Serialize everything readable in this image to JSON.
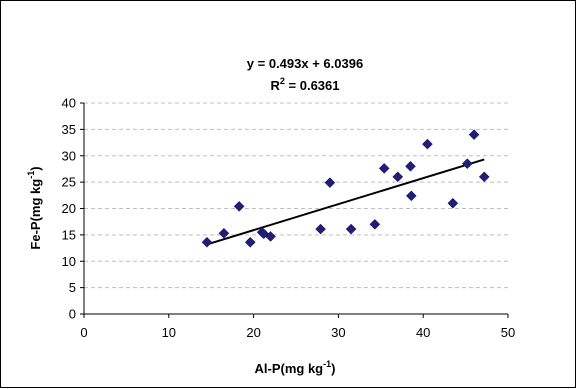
{
  "chart_data": {
    "type": "scatter",
    "title": "",
    "xlabel": {
      "main": "Al-P(mg kg",
      "sup": "-1",
      "close": ")"
    },
    "ylabel": {
      "main": "Fe-P(mg kg",
      "sup": "-1",
      "close": ")"
    },
    "xlim": [
      0,
      50
    ],
    "ylim": [
      0,
      40
    ],
    "x_ticks": [
      0,
      10,
      20,
      30,
      40,
      50
    ],
    "y_ticks": [
      0,
      5,
      10,
      15,
      20,
      25,
      30,
      35,
      40
    ],
    "grid": "horizontal",
    "legend": "none",
    "marker": "diamond",
    "marker_color": "#1f1f7a",
    "points": [
      {
        "x": 14.5,
        "y": 13.6
      },
      {
        "x": 16.5,
        "y": 15.3
      },
      {
        "x": 18.3,
        "y": 20.4
      },
      {
        "x": 19.6,
        "y": 13.6
      },
      {
        "x": 21.0,
        "y": 15.5
      },
      {
        "x": 21.2,
        "y": 15.2
      },
      {
        "x": 22.0,
        "y": 14.7
      },
      {
        "x": 27.9,
        "y": 16.1
      },
      {
        "x": 29.0,
        "y": 24.9
      },
      {
        "x": 31.5,
        "y": 16.1
      },
      {
        "x": 34.3,
        "y": 17.0
      },
      {
        "x": 35.4,
        "y": 27.6
      },
      {
        "x": 37.0,
        "y": 26.0
      },
      {
        "x": 38.5,
        "y": 28.0
      },
      {
        "x": 38.6,
        "y": 22.4
      },
      {
        "x": 40.5,
        "y": 32.2
      },
      {
        "x": 43.5,
        "y": 21.0
      },
      {
        "x": 45.2,
        "y": 28.5
      },
      {
        "x": 46.0,
        "y": 34.0
      },
      {
        "x": 47.2,
        "y": 26.0
      }
    ],
    "trendline": {
      "slope": 0.493,
      "intercept": 6.0396,
      "x_range": [
        14.5,
        47.2
      ],
      "equation": "y = 0.493x + 6.0396",
      "r2_prefix": "R",
      "r2_sup": "2",
      "r2_value": " = 0.6361"
    }
  }
}
